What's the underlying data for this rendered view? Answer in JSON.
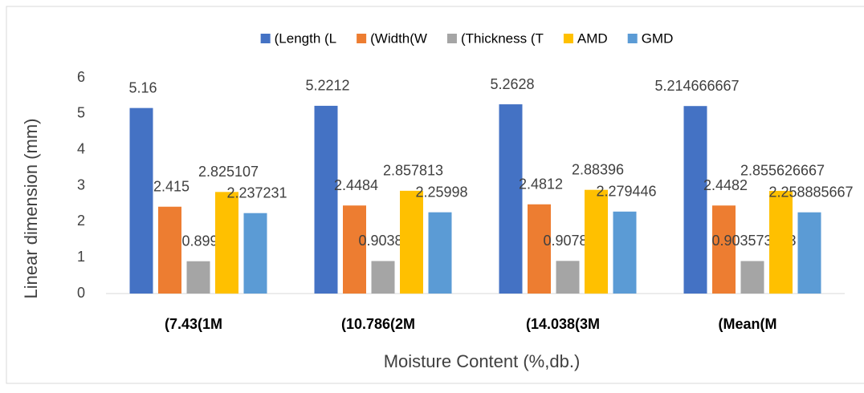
{
  "chart_data": {
    "type": "bar",
    "categories": [
      "(7.43(1M",
      "(10.786(2M",
      "(14.038(3M",
      "(Mean(M"
    ],
    "series": [
      {
        "name": "(Length (L",
        "color": "#4472c4",
        "values": [
          5.16,
          5.2212,
          5.2628,
          5.214666667
        ]
      },
      {
        "name": "(Width(W",
        "color": "#ed7d31",
        "values": [
          2.415,
          2.4484,
          2.4812,
          2.4482
        ]
      },
      {
        "name": "(Thickness (T",
        "color": "#a5a5a5",
        "values": [
          0.899,
          0.90384,
          0.90788,
          0.903573333
        ]
      },
      {
        "name": "AMD",
        "color": "#ffc000",
        "values": [
          2.825107,
          2.857813,
          2.88396,
          2.855626667
        ]
      },
      {
        "name": "GMD",
        "color": "#5b9bd5",
        "values": [
          2.237231,
          2.25998,
          2.279446,
          2.258885667
        ]
      }
    ],
    "xlabel": "Moisture Content (%,db.)",
    "ylabel": "Linear dimension (mm)",
    "ylim": [
      0,
      6
    ],
    "yticks": [
      0,
      1,
      2,
      3,
      4,
      5,
      6
    ],
    "grid": false,
    "legend": "top"
  }
}
